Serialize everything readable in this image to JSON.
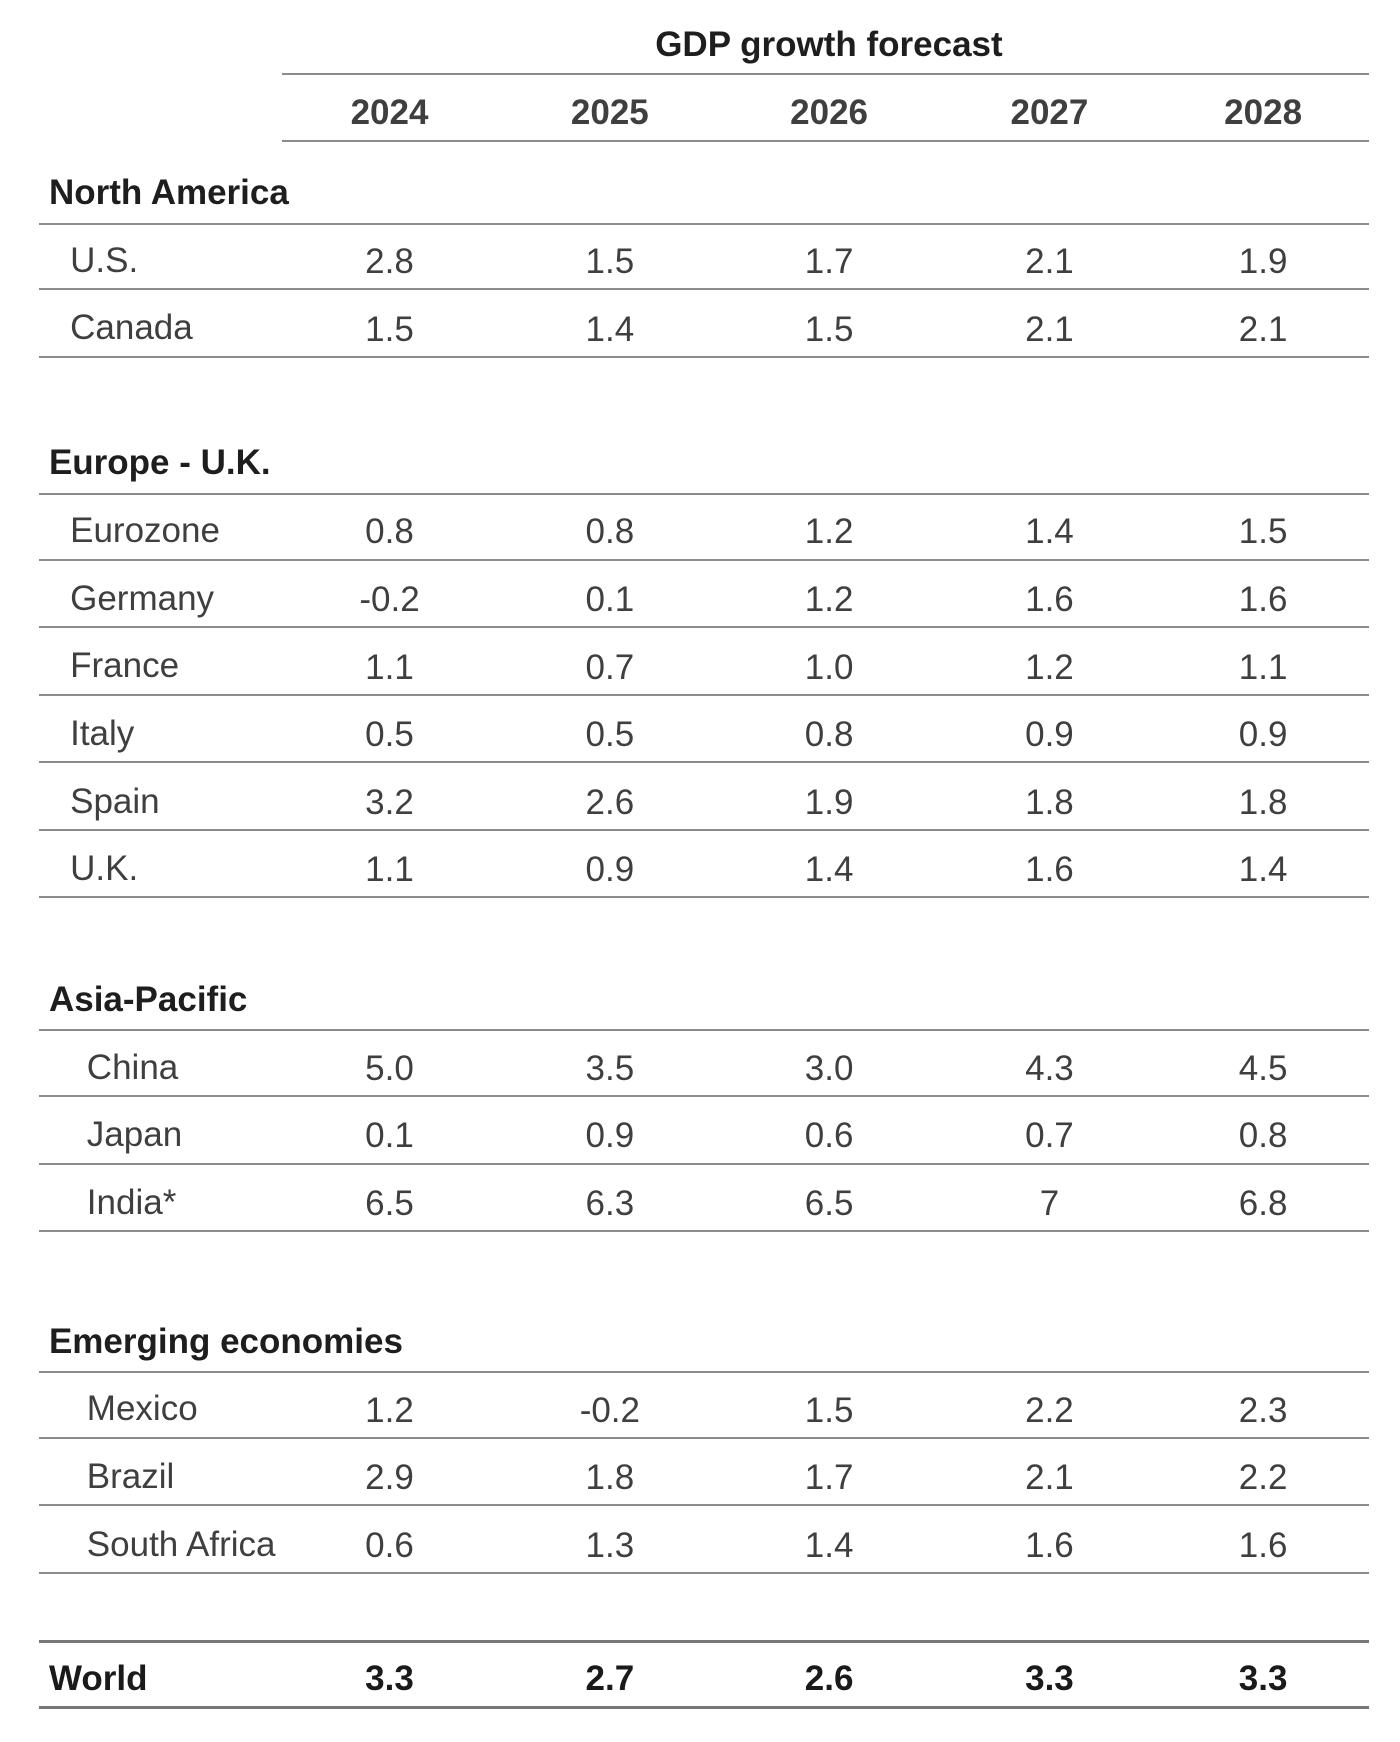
{
  "chart_data": {
    "type": "table",
    "title": "GDP growth forecast",
    "columns": [
      "2024",
      "2025",
      "2026",
      "2027",
      "2028"
    ],
    "groups": [
      {
        "name": "North America",
        "rows": [
          {
            "label": "U.S.",
            "values": [
              "2.8",
              "1.5",
              "1.7",
              "2.1",
              "1.9"
            ]
          },
          {
            "label": "Canada",
            "values": [
              "1.5",
              "1.4",
              "1.5",
              "2.1",
              "2.1"
            ]
          }
        ]
      },
      {
        "name": "Europe - U.K.",
        "rows": [
          {
            "label": "Eurozone",
            "values": [
              "0.8",
              "0.8",
              "1.2",
              "1.4",
              "1.5"
            ]
          },
          {
            "label": "Germany",
            "values": [
              "-0.2",
              "0.1",
              "1.2",
              "1.6",
              "1.6"
            ]
          },
          {
            "label": "France",
            "values": [
              "1.1",
              "0.7",
              "1.0",
              "1.2",
              "1.1"
            ]
          },
          {
            "label": "Italy",
            "values": [
              "0.5",
              "0.5",
              "0.8",
              "0.9",
              "0.9"
            ]
          },
          {
            "label": "Spain",
            "values": [
              "3.2",
              "2.6",
              "1.9",
              "1.8",
              "1.8"
            ]
          },
          {
            "label": "U.K.",
            "values": [
              "1.1",
              "0.9",
              "1.4",
              "1.6",
              "1.4"
            ]
          }
        ]
      },
      {
        "name": "Asia-Pacific",
        "rows": [
          {
            "label": "China",
            "values": [
              "5.0",
              "3.5",
              "3.0",
              "4.3",
              "4.5"
            ]
          },
          {
            "label": "Japan",
            "values": [
              "0.1",
              "0.9",
              "0.6",
              "0.7",
              "0.8"
            ]
          },
          {
            "label": "India*",
            "values": [
              "6.5",
              "6.3",
              "6.5",
              "7",
              "6.8"
            ]
          }
        ]
      },
      {
        "name": "Emerging economies",
        "rows": [
          {
            "label": "Mexico",
            "values": [
              "1.2",
              "-0.2",
              "1.5",
              "2.2",
              "2.3"
            ]
          },
          {
            "label": "Brazil",
            "values": [
              "2.9",
              "1.8",
              "1.7",
              "2.1",
              "2.2"
            ]
          },
          {
            "label": "South Africa",
            "values": [
              "0.6",
              "1.3",
              "1.4",
              "1.6",
              "1.6"
            ]
          }
        ]
      }
    ],
    "total": {
      "label": "World",
      "values": [
        "3.3",
        "2.7",
        "2.6",
        "3.3",
        "3.3"
      ]
    }
  }
}
